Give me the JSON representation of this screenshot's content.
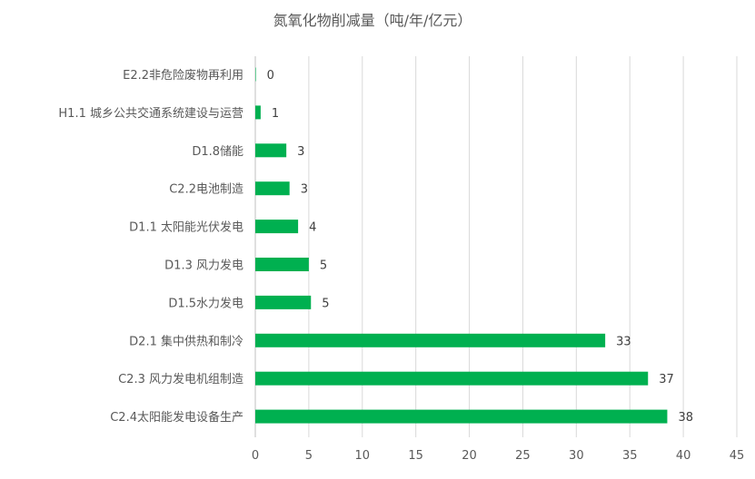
{
  "chart_data": {
    "type": "bar",
    "orientation": "horizontal",
    "title": "氮氧化物削减量（吨/年/亿元）",
    "xlabel": "",
    "ylabel": "",
    "xlim": [
      0,
      45
    ],
    "x_ticks": [
      0,
      5,
      10,
      15,
      20,
      25,
      30,
      35,
      40,
      45
    ],
    "grid": true,
    "legend": "none",
    "bar_color": "#00b050",
    "categories": [
      "E2.2非危险废物再利用",
      "H1.1 城乡公共交通系统建设与运营",
      "D1.8储能",
      "C2.2电池制造",
      "D1.1 太阳能光伏发电",
      "D1.3 风力发电",
      "D1.5水力发电",
      "D2.1 集中供热和制冷",
      "C2.3 风力发电机组制造",
      "C2.4太阳能发电设备生产"
    ],
    "values": [
      0.05,
      0.5,
      2.9,
      3.2,
      4.0,
      5.0,
      5.2,
      32.7,
      36.7,
      38.5
    ],
    "data_labels": [
      "0",
      "1",
      "3",
      "3",
      "4",
      "5",
      "5",
      "33",
      "37",
      "38"
    ]
  }
}
